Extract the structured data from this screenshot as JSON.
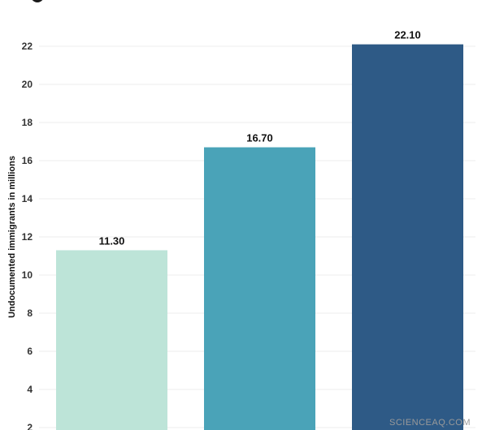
{
  "chart_data": {
    "type": "bar",
    "ylabel": "Undocumented immigrants in millions",
    "yticks": [
      2,
      4,
      6,
      8,
      10,
      12,
      14,
      16,
      18,
      20,
      22
    ],
    "grid": true,
    "series": [
      {
        "values": [
          11.3,
          16.7,
          22.1
        ]
      }
    ],
    "data_labels": [
      "11.30",
      "16.70",
      "22.10"
    ],
    "colors": [
      "#bde4d8",
      "#4aa3b8",
      "#2e5a86"
    ]
  },
  "watermark": "SCIENCEAQ.COM"
}
